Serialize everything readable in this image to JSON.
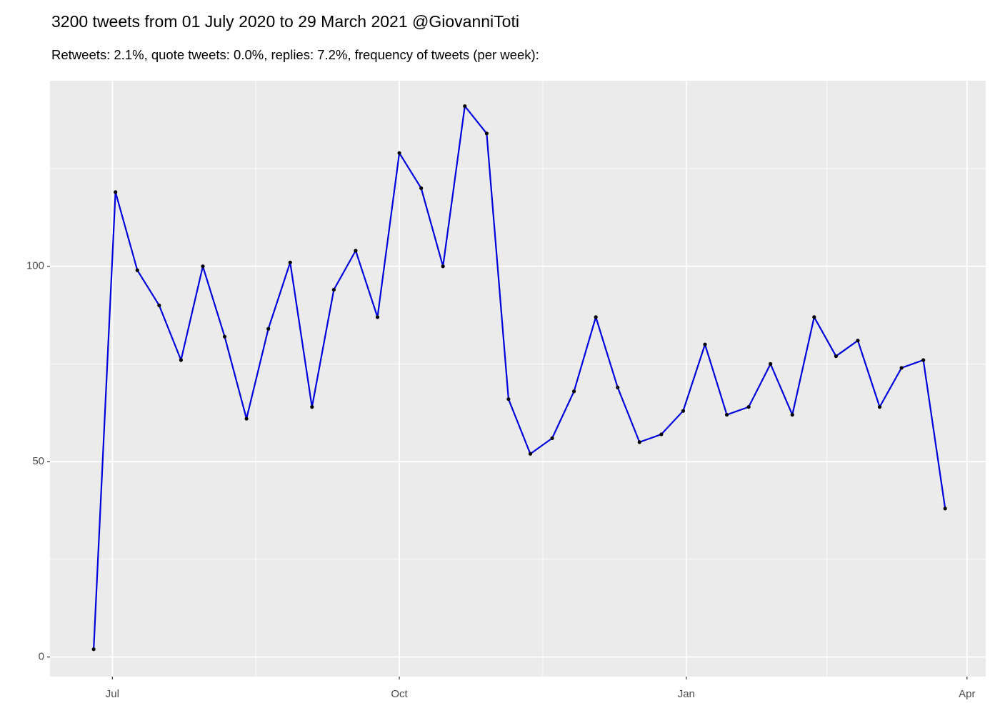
{
  "chart_data": {
    "type": "line",
    "title": "3200 tweets from 01 July 2020 to 29 March 2021 @GiovanniToti",
    "subtitle": "Retweets: 2.1%, quote tweets: 0.0%, replies: 7.2%, frequency of tweets (per week):",
    "x": [
      -6,
      1,
      8,
      15,
      22,
      29,
      36,
      43,
      50,
      57,
      64,
      71,
      78,
      85,
      92,
      99,
      106,
      113,
      120,
      127,
      134,
      141,
      148,
      155,
      162,
      169,
      176,
      183,
      190,
      197,
      204,
      211,
      218,
      225,
      232,
      239,
      246,
      253,
      260,
      267
    ],
    "values": [
      2,
      119,
      99,
      90,
      76,
      100,
      82,
      61,
      84,
      101,
      64,
      94,
      104,
      87,
      129,
      120,
      100,
      141,
      134,
      66,
      52,
      56,
      68,
      87,
      69,
      55,
      57,
      63,
      80,
      62,
      64,
      75,
      62,
      87,
      77,
      81,
      64,
      74,
      76,
      38
    ],
    "color": "#0000dd",
    "point_color": "#000000",
    "xlim": [
      -20,
      280
    ],
    "xticks": [
      {
        "value": 0,
        "label": "Jul"
      },
      {
        "value": 92,
        "label": "Oct"
      },
      {
        "value": 184,
        "label": "Jan"
      },
      {
        "value": 274,
        "label": "Apr"
      }
    ],
    "x_minor_ticks": [
      46,
      138,
      229
    ],
    "ylim": [
      -5,
      147.5
    ],
    "yticks": [
      0,
      50,
      100
    ],
    "y_minor_ticks": [
      25,
      75,
      125
    ],
    "grid": true
  }
}
